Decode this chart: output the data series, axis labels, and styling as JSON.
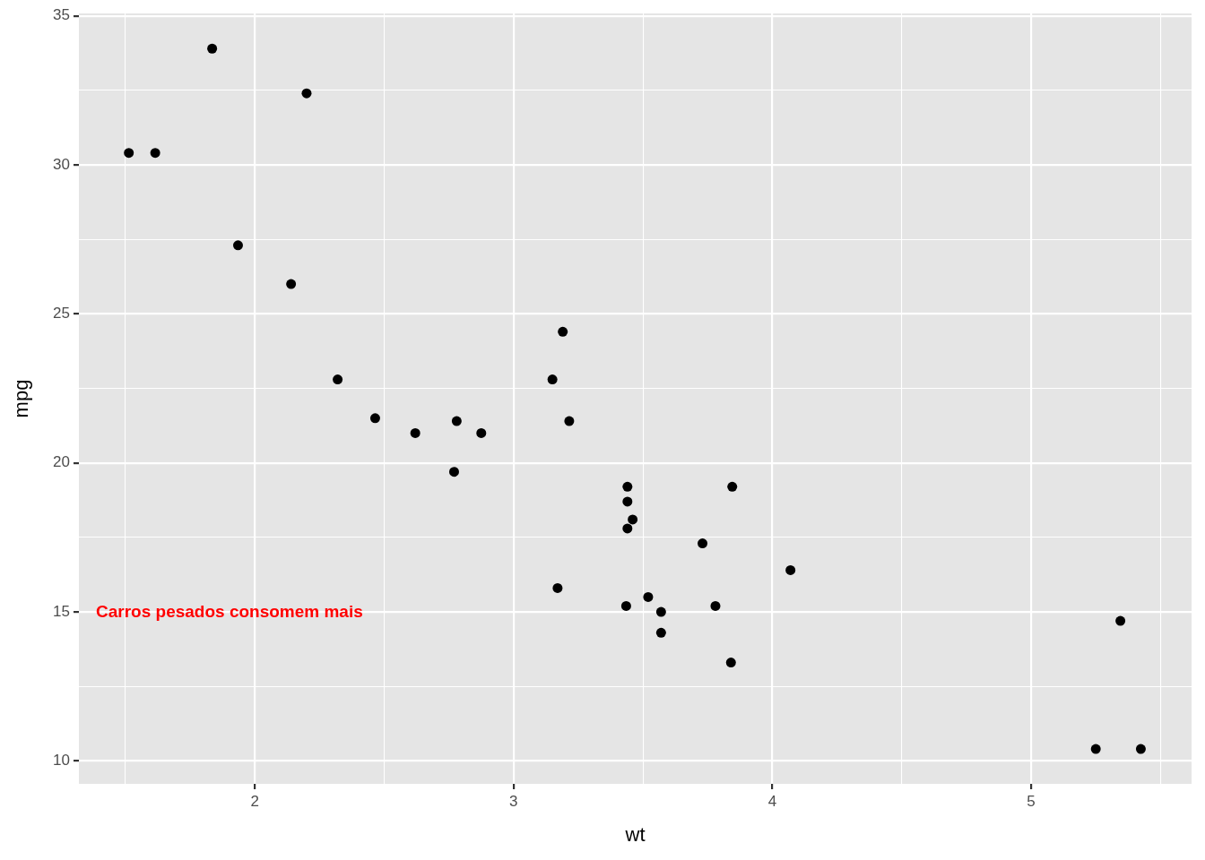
{
  "chart_data": {
    "type": "scatter",
    "xlabel": "wt",
    "ylabel": "mpg",
    "x": [
      2.62,
      2.875,
      2.32,
      3.215,
      3.44,
      3.46,
      3.57,
      3.19,
      3.15,
      3.44,
      3.44,
      4.07,
      3.73,
      3.78,
      5.25,
      5.424,
      5.345,
      2.2,
      1.615,
      1.835,
      2.465,
      3.52,
      3.435,
      3.84,
      3.845,
      1.935,
      2.14,
      1.513,
      3.17,
      2.77,
      3.57,
      2.78
    ],
    "series": [
      {
        "color": "#000000",
        "values": [
          21.0,
          21.0,
          22.8,
          21.4,
          18.7,
          18.1,
          14.3,
          24.4,
          22.8,
          19.2,
          17.8,
          16.4,
          17.3,
          15.2,
          10.4,
          10.4,
          14.7,
          32.4,
          30.4,
          33.9,
          21.5,
          15.5,
          15.2,
          13.3,
          19.2,
          27.3,
          26.0,
          30.4,
          15.8,
          19.7,
          15.0,
          21.4
        ]
      }
    ],
    "xlim": [
      1.32,
      5.62
    ],
    "ylim": [
      9.23,
      35.08
    ],
    "xticks": [
      {
        "value": 1.5,
        "label": null
      },
      2,
      {
        "value": 2.5,
        "label": null
      },
      3,
      {
        "value": 3.5,
        "label": null
      },
      4,
      {
        "value": 4.5,
        "label": null
      },
      5,
      {
        "value": 5.5,
        "label": null
      }
    ],
    "yticks": [
      10,
      {
        "value": 12.5,
        "label": null
      },
      15,
      {
        "value": 17.5,
        "label": null
      },
      20,
      {
        "value": 22.5,
        "label": null
      },
      25,
      {
        "value": 27.5,
        "label": null
      },
      30,
      {
        "value": 32.5,
        "label": null
      },
      35
    ],
    "grid": true,
    "marker": "circle",
    "annotations": [
      "Carros pesados consomem mais"
    ]
  }
}
